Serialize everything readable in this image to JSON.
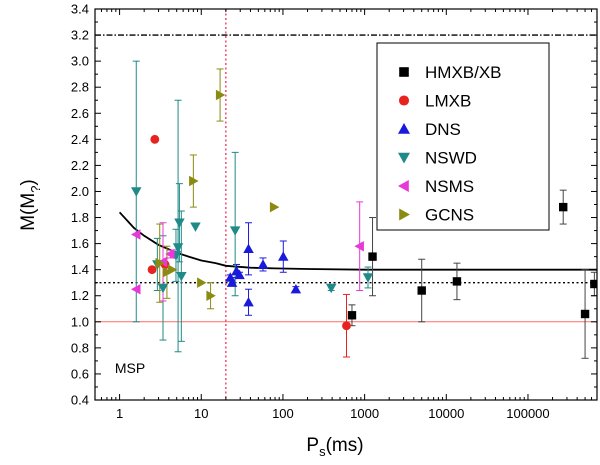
{
  "chart_data": {
    "type": "scatter",
    "title": "",
    "xlabel_main": "P",
    "xlabel_sub": "s",
    "xlabel_tail": "(ms)",
    "ylabel_main": "M(M",
    "ylabel_sub": "?",
    "ylabel_tail": ")",
    "x_scale": "log",
    "xlim": [
      0.5,
      700000
    ],
    "ylim": [
      0.4,
      3.4
    ],
    "x_ticks": [
      1,
      10,
      100,
      1000,
      10000,
      100000
    ],
    "x_tick_labels": [
      "1",
      "10",
      "100",
      "1000",
      "10000",
      "100000"
    ],
    "y_ticks": [
      0.4,
      0.6,
      0.8,
      1.0,
      1.2,
      1.4,
      1.6,
      1.8,
      2.0,
      2.2,
      2.4,
      2.6,
      2.8,
      3.0,
      3.2,
      3.4
    ],
    "y_tick_labels": [
      "0.4",
      "0.6",
      "0.8",
      "1.0",
      "1.2",
      "1.4",
      "1.6",
      "1.8",
      "2.0",
      "2.2",
      "2.4",
      "2.6",
      "2.8",
      "3.0",
      "3.2",
      "3.4"
    ],
    "legend_position": "top-right",
    "reference_lines": [
      {
        "name": "max-mass-line",
        "orientation": "horizontal",
        "value": 3.2,
        "style": "dashdot",
        "color": "#000000"
      },
      {
        "name": "canonical-mass-line",
        "orientation": "horizontal",
        "value": 1.3,
        "style": "dotted",
        "color": "#000000"
      },
      {
        "name": "one-solar-mass-line",
        "orientation": "horizontal",
        "value": 1.0,
        "style": "solid",
        "color": "#ff6b6b"
      },
      {
        "name": "msp-boundary-line",
        "orientation": "vertical",
        "value": 20,
        "style": "dotted",
        "color": "#e8325a"
      }
    ],
    "fit_curve": {
      "points": [
        [
          1,
          1.84
        ],
        [
          1.5,
          1.72
        ],
        [
          2,
          1.66
        ],
        [
          3,
          1.59
        ],
        [
          5,
          1.53
        ],
        [
          7,
          1.5
        ],
        [
          10,
          1.47
        ],
        [
          15,
          1.45
        ],
        [
          20,
          1.43
        ],
        [
          40,
          1.415
        ],
        [
          80,
          1.41
        ],
        [
          200,
          1.405
        ],
        [
          1000,
          1.4
        ],
        [
          10000,
          1.4
        ],
        [
          100000,
          1.4
        ],
        [
          700000,
          1.4
        ]
      ]
    },
    "annotations": [
      {
        "text": "MSP",
        "x": 4.5,
        "y": 0.58
      }
    ],
    "series": [
      {
        "name": "HMXB/XB",
        "marker": "square",
        "color": "#000000",
        "err_color": "#444444",
        "points": [
          [
            700,
            1.05,
            0.08,
            0.08
          ],
          [
            1250,
            1.5,
            0.3,
            0.3
          ],
          [
            5000,
            1.24,
            0.24,
            0.24
          ],
          [
            13500,
            1.31,
            0.14,
            0.14
          ],
          [
            270000,
            1.88,
            0.13,
            0.13
          ],
          [
            500000,
            1.06,
            0.34,
            0.34
          ],
          [
            650000,
            1.29,
            0.09,
            0.09
          ]
        ]
      },
      {
        "name": "LMXB",
        "marker": "circle",
        "color": "#e8231f",
        "err_color": "#e8231f",
        "points": [
          [
            2.7,
            2.4,
            0,
            0
          ],
          [
            2.5,
            1.4,
            0,
            0
          ],
          [
            3.6,
            1.44,
            0,
            0
          ],
          [
            600,
            0.97,
            0.24,
            0.24
          ]
        ]
      },
      {
        "name": "DNS",
        "marker": "triangle-up",
        "color": "#1a1adc",
        "err_color": "#1a1adc",
        "points": [
          [
            22.7,
            1.34,
            0.02,
            0.02
          ],
          [
            27,
            1.39,
            0.05,
            0.05
          ],
          [
            37.9,
            1.56,
            0.2,
            0.2
          ],
          [
            37.9,
            1.15,
            0.1,
            0.1
          ],
          [
            57,
            1.44,
            0.05,
            0.05
          ],
          [
            101,
            1.5,
            0.12,
            0.12
          ],
          [
            144,
            1.25,
            0.02,
            0.02
          ],
          [
            23.8,
            1.3,
            0.02,
            0.02
          ],
          [
            29.4,
            1.36,
            0.02,
            0.02
          ]
        ]
      },
      {
        "name": "NSWD",
        "marker": "triangle-down",
        "color": "#1f8a88",
        "err_color": "#1f8a88",
        "points": [
          [
            1.6,
            2.0,
            1.0,
            1.0
          ],
          [
            2.9,
            1.44,
            0.2,
            0.2
          ],
          [
            3.4,
            1.26,
            0.4,
            0.4
          ],
          [
            4.9,
            1.51,
            0.2,
            0.2
          ],
          [
            5.2,
            1.57,
            1.13,
            0.8
          ],
          [
            5.4,
            1.76,
            0.3,
            0.3
          ],
          [
            5.7,
            1.35,
            0.5,
            0.5
          ],
          [
            8.5,
            1.73,
            0,
            0
          ],
          [
            26,
            1.7,
            0.6,
            0.5
          ],
          [
            390,
            1.26,
            0.02,
            0.02
          ],
          [
            1100,
            1.34,
            0.08,
            0.08
          ]
        ]
      },
      {
        "name": "NSMS",
        "marker": "triangle-left",
        "color": "#e838d8",
        "err_color": "#e838d8",
        "points": [
          [
            1.6,
            1.67,
            0,
            0
          ],
          [
            1.6,
            1.25,
            0,
            0
          ],
          [
            3.4,
            1.46,
            0.3,
            0.3
          ],
          [
            4.2,
            1.52,
            0.03,
            0.03
          ],
          [
            870,
            1.58,
            0.34,
            0.34
          ]
        ]
      },
      {
        "name": "GCNS",
        "marker": "triangle-right",
        "color": "#8b8b12",
        "err_color": "#8b8b12",
        "points": [
          [
            3.1,
            1.45,
            0.3,
            0.3
          ],
          [
            3.8,
            1.38,
            0.2,
            0.2
          ],
          [
            4.4,
            1.4,
            0,
            0
          ],
          [
            8.0,
            2.08,
            0.2,
            0.2
          ],
          [
            10.0,
            1.3,
            0,
            0
          ],
          [
            13,
            1.2,
            0.1,
            0.1
          ],
          [
            17,
            2.74,
            0.2,
            0.2
          ],
          [
            78,
            1.88,
            0,
            0
          ]
        ]
      }
    ]
  }
}
